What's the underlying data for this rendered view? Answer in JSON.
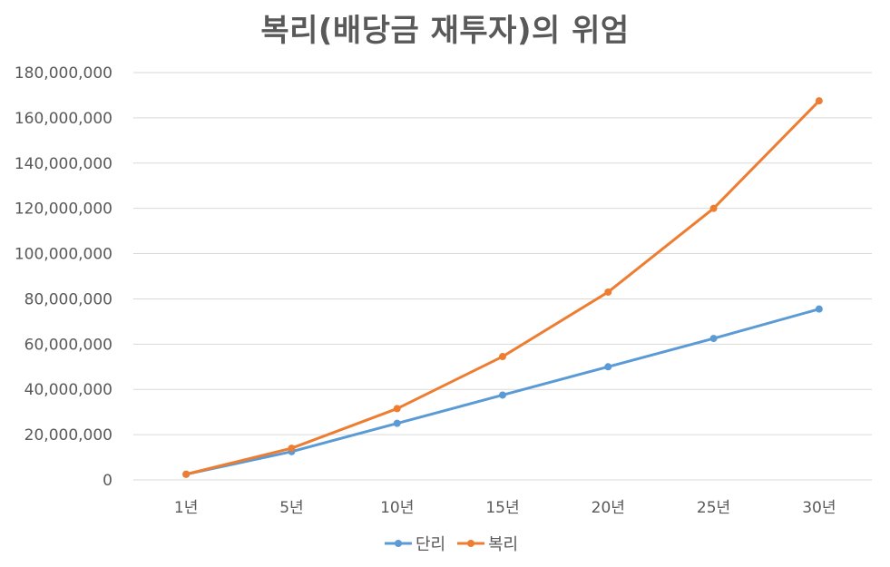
{
  "chart_data": {
    "type": "line",
    "title": "복리(배당금 재투자)의 위엄",
    "categories": [
      "1년",
      "5년",
      "10년",
      "15년",
      "20년",
      "25년",
      "30년"
    ],
    "series": [
      {
        "name": "단리",
        "color": "#5B9BD5",
        "values": [
          2500000,
          12500000,
          25000000,
          37500000,
          50000000,
          62500000,
          75500000
        ]
      },
      {
        "name": "복리",
        "color": "#ED7D31",
        "values": [
          2500000,
          14000000,
          31500000,
          54500000,
          83000000,
          120000000,
          167500000
        ]
      }
    ],
    "ylim": [
      0,
      180000000
    ],
    "yticks": [
      "0",
      "20,000,000",
      "40,000,000",
      "60,000,000",
      "80,000,000",
      "100,000,000",
      "120,000,000",
      "140,000,000",
      "160,000,000",
      "180,000,000"
    ],
    "grid": true,
    "legend": "bottom",
    "xlabel": "",
    "ylabel": ""
  }
}
